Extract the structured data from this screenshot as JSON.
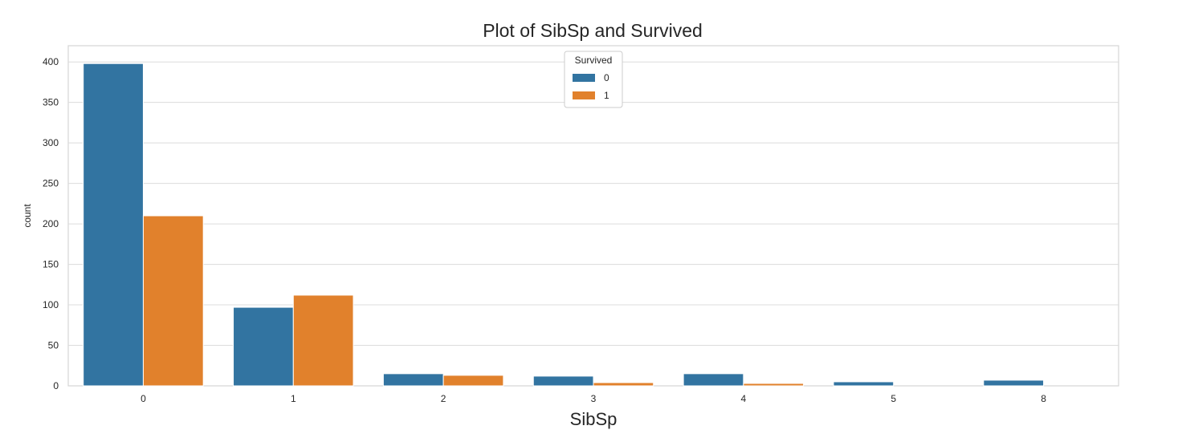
{
  "chart_data": {
    "type": "bar",
    "title": "Plot of SibSp and Survived",
    "xlabel": "SibSp",
    "ylabel": "count",
    "categories": [
      "0",
      "1",
      "2",
      "3",
      "4",
      "5",
      "8"
    ],
    "series": [
      {
        "name": "0",
        "color": "#3274a1",
        "values": [
          398,
          97,
          15,
          12,
          15,
          5,
          7
        ]
      },
      {
        "name": "1",
        "color": "#e1812c",
        "values": [
          210,
          112,
          13,
          4,
          3,
          0,
          0
        ]
      }
    ],
    "ylim": [
      0,
      420
    ],
    "yticks": [
      0,
      50,
      100,
      150,
      200,
      250,
      300,
      350,
      400
    ],
    "grid": true,
    "legend": {
      "title": "Survived",
      "placement": "top-center"
    }
  }
}
